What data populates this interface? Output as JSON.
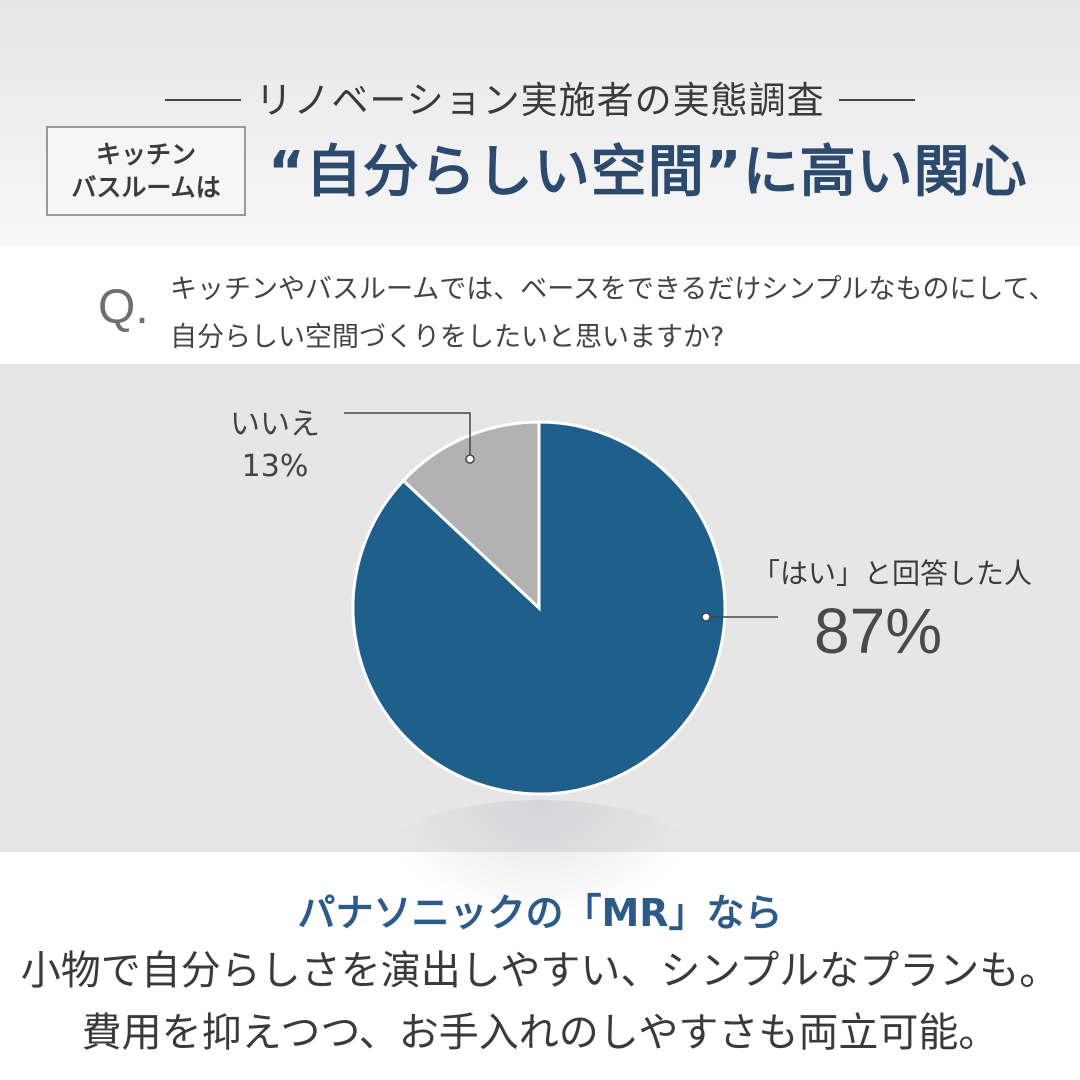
{
  "header": {
    "survey_label": "リノベーション実施者の実態調査",
    "subject_line1": "キッチン",
    "subject_line2": "バスルームは",
    "headline": "“自分らしい空間”に高い関心"
  },
  "question": {
    "mark": "Q.",
    "line1": "キッチンやバスルームでは、ベースをできるだけシンプルなものにして、",
    "line2": "自分らしい空間づくりをしたいと思いますか?"
  },
  "chart_data": {
    "type": "pie",
    "slices": [
      {
        "label": "「はい」と回答した人",
        "value": 87,
        "display": "87%",
        "color": "#1f5f8b"
      },
      {
        "label": "いいえ",
        "value": 13,
        "display": "13%",
        "color": "#b2b2b2"
      }
    ]
  },
  "footer": {
    "product_line": "パナソニックの「MR」なら",
    "desc_line1": "小物で自分らしさを演出しやすい、シンプルなプランも。",
    "desc_line2": "費用を抑えつつ、お手入れのしやすさも両立可能。"
  }
}
